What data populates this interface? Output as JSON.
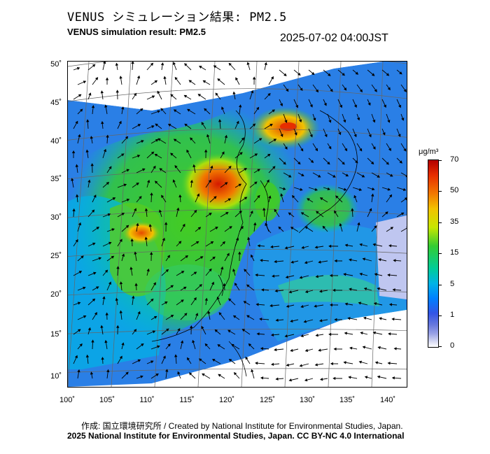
{
  "header": {
    "title_jp": "VENUS シミュレーション結果: PM2.5",
    "title_en": "VENUS simulation result: PM2.5",
    "timestamp": "2025-07-02 04:00JST"
  },
  "map": {
    "type": "heatmap",
    "variable": "PM2.5",
    "lon_range": [
      100,
      142
    ],
    "lat_range": [
      9,
      51
    ],
    "lat_ticks": [
      "50˚",
      "45˚",
      "40˚",
      "35˚",
      "30˚",
      "25˚",
      "20˚",
      "15˚",
      "10˚"
    ],
    "lon_ticks": [
      "100˚",
      "105˚",
      "110˚",
      "115˚",
      "120˚",
      "125˚",
      "130˚",
      "135˚",
      "140˚"
    ],
    "overlays": [
      "wind-vectors",
      "coastlines",
      "lat-lon-grid"
    ],
    "hotspots": [
      {
        "region": "North China Plain",
        "level": "high"
      },
      {
        "region": "Sichuan Basin",
        "level": "high"
      },
      {
        "region": "Northeast China",
        "level": "medium-high"
      }
    ]
  },
  "colorbar": {
    "unit": "μg/m³",
    "ticks": [
      "70",
      "50",
      "35",
      "15",
      "5",
      "1",
      "0"
    ],
    "colors": [
      "#b30000",
      "#f27a00",
      "#c7e600",
      "#33cc33",
      "#00b3e6",
      "#3355e6",
      "#ffffff"
    ]
  },
  "credits": {
    "line1": "作成: 国立環境研究所 / Created by National Institute for Environmental Studies, Japan.",
    "line2": "2025 National Institute for Environmental Studies, Japan. CC BY-NC 4.0 International"
  }
}
